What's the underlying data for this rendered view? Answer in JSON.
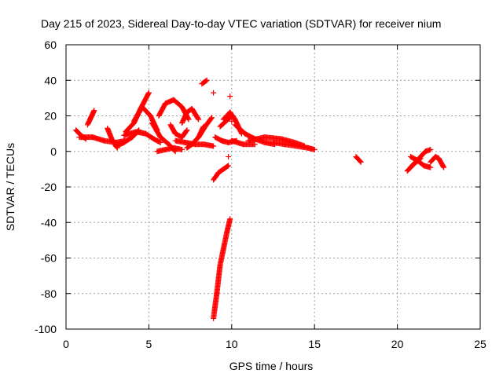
{
  "chart_data": {
    "type": "scatter",
    "title": "Day 215 of 2023, Sidereal Day-to-day VTEC variation (SDTVAR) for receiver nium",
    "xlabel": "GPS time / hours",
    "ylabel": "SDTVAR / TECUs",
    "xlim": [
      0,
      25
    ],
    "ylim": [
      -100,
      60
    ],
    "xticks": [
      0,
      5,
      10,
      15,
      20,
      25
    ],
    "yticks": [
      60,
      40,
      20,
      0,
      -20,
      -40,
      -60,
      -80,
      -100
    ],
    "xtick_labels": [
      "0",
      "5",
      "10",
      "15",
      "20",
      "25"
    ],
    "ytick_labels": [
      "60",
      "40",
      "20",
      "0",
      "-20",
      "-40",
      "-60",
      "-80",
      "-100"
    ],
    "grid": true,
    "marker": "+",
    "color": "#ff0000",
    "tracks": [
      {
        "name": "t01",
        "x": [
          0.6,
          0.9,
          1.2
        ],
        "y": [
          12,
          9,
          7
        ]
      },
      {
        "name": "t02",
        "x": [
          1.3,
          1.5,
          1.7
        ],
        "y": [
          15,
          19,
          23
        ]
      },
      {
        "name": "t03",
        "x": [
          0.8,
          1.6,
          2.3,
          3.0,
          3.6
        ],
        "y": [
          8,
          8,
          6,
          5,
          6
        ]
      },
      {
        "name": "t04",
        "x": [
          2.5,
          2.8,
          3.1
        ],
        "y": [
          13,
          6,
          2
        ]
      },
      {
        "name": "t05",
        "x": [
          3.0,
          3.5,
          4.0,
          4.4
        ],
        "y": [
          3,
          5,
          8,
          12
        ]
      },
      {
        "name": "t06",
        "x": [
          3.6,
          4.1,
          4.5,
          5.0
        ],
        "y": [
          11,
          16,
          24,
          33
        ]
      },
      {
        "name": "t07",
        "x": [
          4.1,
          4.6,
          5.1,
          5.5
        ],
        "y": [
          17,
          25,
          20,
          12
        ]
      },
      {
        "name": "t08",
        "x": [
          3.5,
          4.2,
          4.8,
          5.3,
          5.7
        ],
        "y": [
          9,
          11,
          10,
          7,
          5
        ]
      },
      {
        "name": "t09",
        "x": [
          5.2,
          5.7,
          6.2,
          6.6
        ],
        "y": [
          16,
          8,
          4,
          0
        ]
      },
      {
        "name": "t10",
        "x": [
          5.5,
          6.0,
          6.5,
          7.0
        ],
        "y": [
          0,
          1,
          2,
          1
        ]
      },
      {
        "name": "t11",
        "x": [
          5.6,
          6.0,
          6.5,
          7.0,
          7.4
        ],
        "y": [
          20,
          27,
          29,
          25,
          18
        ]
      },
      {
        "name": "t12",
        "x": [
          6.3,
          6.6,
          7.0,
          7.3
        ],
        "y": [
          15,
          10,
          8,
          12
        ]
      },
      {
        "name": "t13",
        "x": [
          7.0,
          7.3,
          7.6,
          8.0
        ],
        "y": [
          16,
          22,
          24,
          18
        ]
      },
      {
        "name": "t14",
        "x": [
          7.3,
          7.6,
          8.0,
          8.3
        ],
        "y": [
          2,
          4,
          8,
          14
        ]
      },
      {
        "name": "t15",
        "x": [
          6.6,
          7.2,
          7.8,
          8.3,
          8.9
        ],
        "y": [
          6,
          5,
          4,
          4,
          3
        ]
      },
      {
        "name": "t16",
        "x": [
          8.0,
          8.4,
          8.8
        ],
        "y": [
          8,
          14,
          19
        ]
      },
      {
        "name": "t17",
        "x": [
          8.2,
          8.5
        ],
        "y": [
          38,
          40
        ]
      },
      {
        "name": "t18",
        "x": [
          9.3,
          9.9
        ],
        "y": [
          14,
          19
        ]
      },
      {
        "name": "t19",
        "x": [
          9.5,
          9.9,
          10.2,
          10.6
        ],
        "y": [
          18,
          22,
          18,
          10
        ]
      },
      {
        "name": "t20",
        "x": [
          9.0,
          9.4,
          9.8,
          10.3
        ],
        "y": [
          8,
          6,
          5,
          6
        ]
      },
      {
        "name": "t21",
        "x": [
          10.0,
          10.7,
          11.4
        ],
        "y": [
          6,
          4,
          4
        ]
      },
      {
        "name": "t22",
        "x": [
          10.2,
          10.8,
          11.4,
          12.0,
          12.6
        ],
        "y": [
          15,
          10,
          7,
          5,
          4
        ]
      },
      {
        "name": "t23",
        "x": [
          11.0,
          12.0,
          13.0,
          13.8,
          14.4
        ],
        "y": [
          6,
          8,
          7,
          5,
          3
        ]
      },
      {
        "name": "t24",
        "x": [
          12.5,
          13.2,
          13.9,
          14.6,
          15.0
        ],
        "y": [
          5,
          4,
          3,
          2,
          1
        ]
      },
      {
        "name": "t25",
        "x": [
          17.5,
          17.8
        ],
        "y": [
          -3,
          -6
        ]
      },
      {
        "name": "t26",
        "x": [
          20.6,
          21.0,
          21.4
        ],
        "y": [
          -11,
          -7,
          -4
        ]
      },
      {
        "name": "t27",
        "x": [
          20.8,
          21.3,
          21.7,
          22.0
        ],
        "y": [
          -9,
          -4,
          0,
          1
        ]
      },
      {
        "name": "t28",
        "x": [
          20.8,
          21.2,
          21.6,
          22.0
        ],
        "y": [
          -3,
          -5,
          -8,
          -9
        ]
      },
      {
        "name": "t29",
        "x": [
          22.0,
          22.3,
          22.5,
          22.8
        ],
        "y": [
          -6,
          -3,
          -4,
          -9
        ]
      },
      {
        "name": "t30",
        "x": [
          8.9,
          9.1,
          9.3
        ],
        "y": [
          -94,
          -80,
          -64
        ]
      },
      {
        "name": "t31",
        "x": [
          9.3,
          9.5,
          9.7,
          9.9
        ],
        "y": [
          -64,
          -55,
          -46,
          -38
        ]
      },
      {
        "name": "t32",
        "x": [
          8.9,
          9.2,
          9.5,
          9.8
        ],
        "y": [
          -16,
          -12,
          -10,
          -8
        ]
      }
    ],
    "isolated_points": {
      "x": [
        8.9,
        9.9,
        9.8,
        10.0
      ],
      "y": [
        33,
        31,
        -3,
        17
      ]
    }
  }
}
